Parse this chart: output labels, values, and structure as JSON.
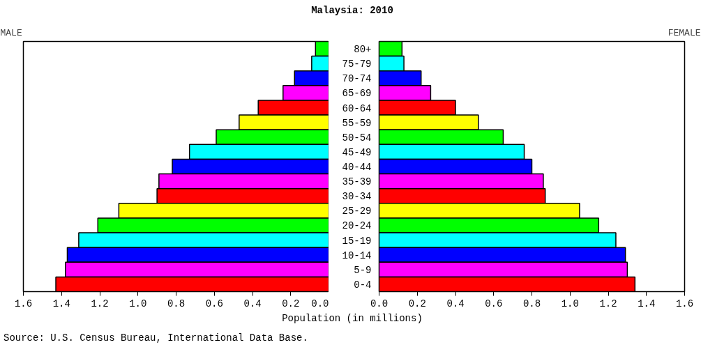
{
  "chart_data": [
    {
      "type": "bar",
      "orientation": "horizontal",
      "title": "Malaysia: 2010",
      "subtitle": "MALE",
      "xlabel": "Population (in millions)",
      "annotations": [
        "Source: U.S. Census Bureau, International Data Base."
      ],
      "tick_labels": "x",
      "values": [
        0.07,
        0.09,
        0.18,
        0.24,
        0.37,
        0.47,
        0.59,
        0.73,
        0.82,
        0.89,
        0.9,
        1.1,
        1.21,
        1.31,
        1.37,
        1.38,
        1.43
      ],
      "colors": [
        "#00ff00",
        "#00ffff",
        "#0000ff",
        "#ff00ff",
        "#ff0000",
        "#ffff00",
        "#00ff00",
        "#00ffff",
        "#0000ff",
        "#ff00ff",
        "#ff0000",
        "#ffff00",
        "#00ff00",
        "#00ffff",
        "#0000ff",
        "#ff00ff",
        "#ff0000"
      ],
      "xlim": [
        1.6,
        0
      ],
      "xticks": [
        {
          "value": 1.6,
          "label": "1.6"
        },
        {
          "value": 1.4,
          "label": "1.4"
        },
        {
          "value": 1.2,
          "label": "1.2"
        },
        {
          "value": 1.0,
          "label": "1.0"
        },
        {
          "value": 0.8,
          "label": "0.8"
        },
        {
          "value": 0.6,
          "label": "0.6"
        },
        {
          "value": 0.4,
          "label": "0.4"
        },
        {
          "value": 0.2,
          "label": "0.2"
        },
        {
          "value": 0.0,
          "label": "0.0"
        }
      ]
    },
    {
      "type": "bar",
      "orientation": "horizontal",
      "subtitle": "FEMALE",
      "categories": [
        "80+",
        "75-79",
        "70-74",
        "65-69",
        "60-64",
        "55-59",
        "50-54",
        "45-49",
        "40-44",
        "35-39",
        "30-34",
        "25-29",
        "20-24",
        "15-19",
        "10-14",
        "5-9",
        "0-4"
      ],
      "values": [
        0.12,
        0.13,
        0.22,
        0.27,
        0.4,
        0.52,
        0.65,
        0.76,
        0.8,
        0.86,
        0.87,
        1.05,
        1.15,
        1.24,
        1.29,
        1.3,
        1.34
      ],
      "colors": [
        "#00ff00",
        "#00ffff",
        "#0000ff",
        "#ff00ff",
        "#ff0000",
        "#ffff00",
        "#00ff00",
        "#00ffff",
        "#0000ff",
        "#ff00ff",
        "#ff0000",
        "#ffff00",
        "#00ff00",
        "#00ffff",
        "#0000ff",
        "#ff00ff",
        "#ff0000"
      ],
      "xlim": [
        0,
        1.6
      ],
      "xticks": [
        {
          "value": 0.0,
          "label": "0.0"
        },
        {
          "value": 0.2,
          "label": "0.2"
        },
        {
          "value": 0.4,
          "label": "0.4"
        },
        {
          "value": 0.6,
          "label": "0.6"
        },
        {
          "value": 0.8,
          "label": "0.8"
        },
        {
          "value": 1.0,
          "label": "1.0"
        },
        {
          "value": 1.2,
          "label": "1.2"
        },
        {
          "value": 1.4,
          "label": "1.4"
        },
        {
          "value": 1.6,
          "label": "1.6"
        }
      ]
    }
  ]
}
